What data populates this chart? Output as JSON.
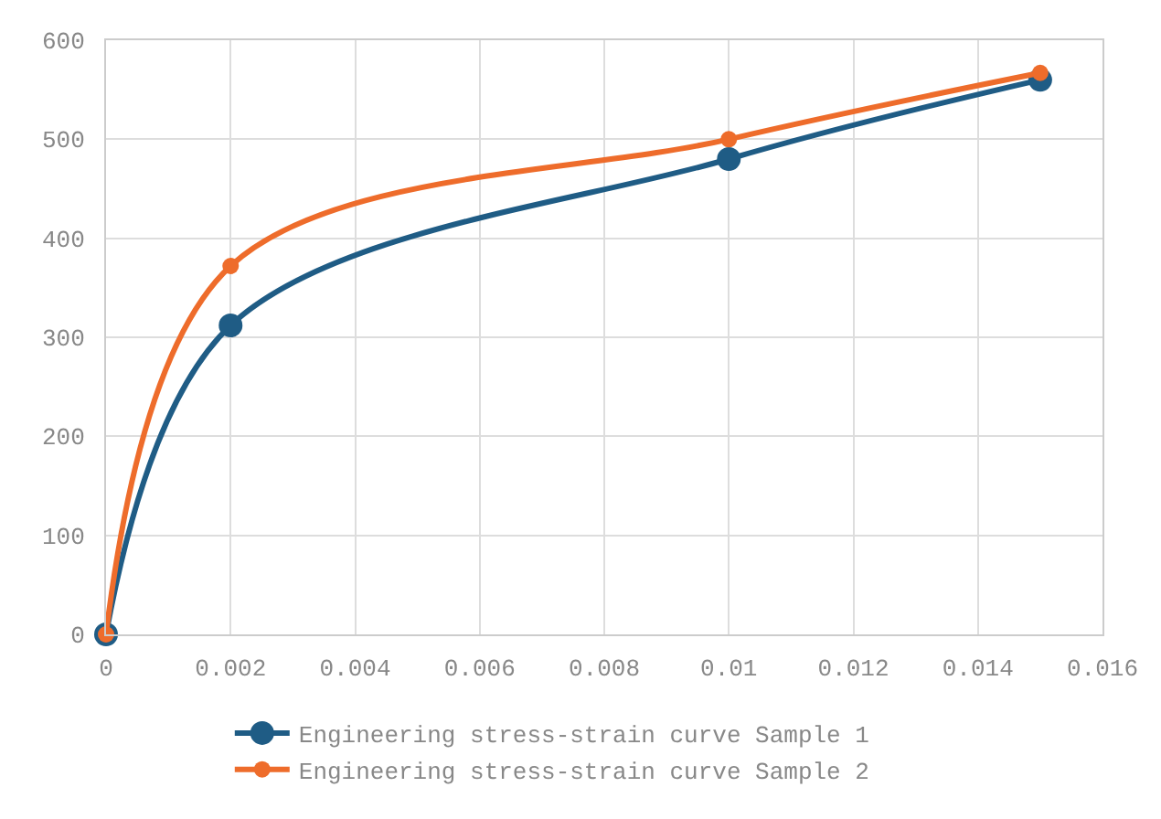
{
  "chart_data": {
    "type": "line",
    "x": [
      0,
      0.002,
      0.01,
      0.015
    ],
    "series": [
      {
        "name": "Engineering stress-strain curve Sample 1",
        "color": "#1f5c85",
        "values": [
          0,
          312,
          480,
          560
        ]
      },
      {
        "name": "Engineering stress-strain curve Sample 2",
        "color": "#ee6c2b",
        "values": [
          0,
          372,
          500,
          567
        ]
      }
    ],
    "xlim": [
      0,
      0.016
    ],
    "xticks": [
      0,
      0.002,
      0.004,
      0.006,
      0.008,
      0.01,
      0.012,
      0.014,
      0.016
    ],
    "ylim": [
      0,
      600
    ],
    "yticks": [
      0,
      100,
      200,
      300,
      400,
      500,
      600
    ],
    "grid": true,
    "legend": "bottom",
    "marker": "circle",
    "line_style": "solid"
  }
}
